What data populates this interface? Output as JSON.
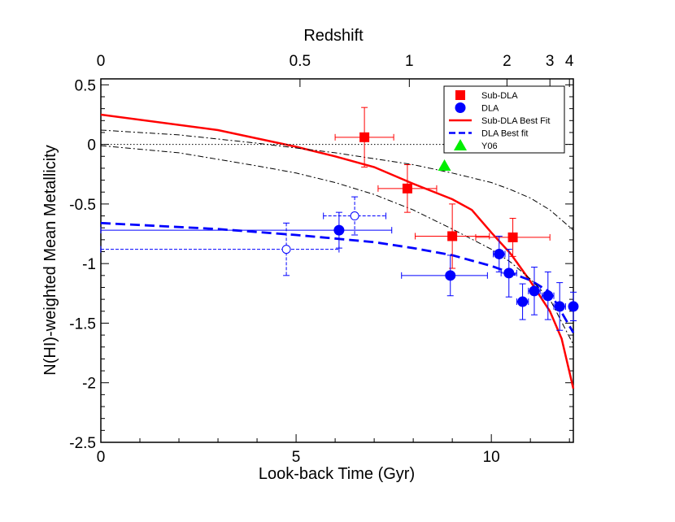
{
  "chart_data": {
    "type": "scatter",
    "xlabel": "Look-back Time (Gyr)",
    "ylabel": "N(HI)-weighted Mean Metallicity",
    "top_xlabel": "Redshift",
    "xlim": [
      0,
      12.1
    ],
    "ylim": [
      -2.5,
      0.55
    ],
    "x_ticks": [
      0,
      5,
      10
    ],
    "x_tick_labels": [
      "0",
      "5",
      "10"
    ],
    "y_ticks": [
      -2.5,
      -2,
      -1.5,
      -1,
      -0.5,
      0,
      0.5
    ],
    "y_tick_labels": [
      "-2.5",
      "-2",
      "-1.5",
      "-1",
      "-0.5",
      "0",
      "0.5"
    ],
    "top_ticks": [
      {
        "t": 0,
        "label": "0"
      },
      {
        "t": 5.1,
        "label": "0.5"
      },
      {
        "t": 7.9,
        "label": "1"
      },
      {
        "t": 10.4,
        "label": "2"
      },
      {
        "t": 11.5,
        "label": "3"
      },
      {
        "t": 12.0,
        "label": "4"
      }
    ],
    "legend_position": "top-right",
    "legend": [
      {
        "label": "Sub-DLA",
        "kind": "square",
        "color": "#ff0000"
      },
      {
        "label": "DLA",
        "kind": "circle",
        "color": "#0000ff"
      },
      {
        "label": "Sub-DLA Best Fit",
        "kind": "line",
        "color": "#ff0000"
      },
      {
        "label": "DLA Best fit",
        "kind": "dashed",
        "color": "#0000ff"
      },
      {
        "label": "Y06",
        "kind": "triangle",
        "color": "#00ee00"
      }
    ],
    "series": [
      {
        "name": "Sub-DLA",
        "marker": "square",
        "color": "#ff0000",
        "points": [
          {
            "x": 6.75,
            "y": 0.06,
            "xerr": 0.75,
            "yerr": 0.25
          },
          {
            "x": 7.85,
            "y": -0.37,
            "xerr": 0.75,
            "yerr": 0.2
          },
          {
            "x": 9.0,
            "y": -0.77,
            "xerr": 0.95,
            "yerr": 0.27
          },
          {
            "x": 10.55,
            "y": -0.78,
            "xerr": 0.95,
            "yerr": 0.16
          }
        ]
      },
      {
        "name": "DLA",
        "marker": "circle",
        "color": "#0000ff",
        "points": [
          {
            "x": 6.1,
            "y": -0.72,
            "xerr": 6.1,
            "yerr": 0.15,
            "xerr_right": 1.35
          },
          {
            "x": 8.95,
            "y": -1.1,
            "xerr": 1.25,
            "yerr": 0.17,
            "xerr_right": 0.95
          },
          {
            "x": 10.2,
            "y": -0.92,
            "xerr": 0.15,
            "yerr": 0.15
          },
          {
            "x": 10.45,
            "y": -1.08,
            "xerr": 0.2,
            "yerr": 0.2
          },
          {
            "x": 10.8,
            "y": -1.32,
            "xerr": 0.15,
            "yerr": 0.15
          },
          {
            "x": 11.1,
            "y": -1.23,
            "xerr": 0.15,
            "yerr": 0.2
          },
          {
            "x": 11.45,
            "y": -1.27,
            "xerr": 0.15,
            "yerr": 0.2
          },
          {
            "x": 11.75,
            "y": -1.36,
            "xerr": 0.15,
            "yerr": 0.2
          },
          {
            "x": 12.1,
            "y": -1.36,
            "xerr": 0.1,
            "yerr": 0.12
          }
        ]
      },
      {
        "name": "DLA (open)",
        "marker": "open-circle",
        "color": "#0000ff",
        "points": [
          {
            "x": 4.75,
            "y": -0.88,
            "xerr": 4.75,
            "yerr": 0.22,
            "xerr_right": 1.35
          },
          {
            "x": 6.5,
            "y": -0.6,
            "xerr": 0.8,
            "yerr": 0.16
          }
        ]
      },
      {
        "name": "Y06",
        "marker": "triangle",
        "color": "#00ee00",
        "points": [
          {
            "x": 8.8,
            "y": -0.18
          }
        ]
      }
    ],
    "curves": [
      {
        "name": "Sub-DLA Best Fit",
        "style": "solid",
        "color": "#ff0000",
        "points": [
          [
            0,
            0.25
          ],
          [
            3,
            0.12
          ],
          [
            5,
            -0.02
          ],
          [
            6,
            -0.1
          ],
          [
            7,
            -0.19
          ],
          [
            8,
            -0.33
          ],
          [
            9,
            -0.46
          ],
          [
            9.5,
            -0.55
          ],
          [
            10,
            -0.74
          ],
          [
            10.5,
            -0.92
          ],
          [
            11,
            -1.15
          ],
          [
            11.5,
            -1.4
          ],
          [
            11.8,
            -1.63
          ],
          [
            12.1,
            -2.05
          ]
        ]
      },
      {
        "name": "DLA Best fit",
        "style": "dashed",
        "color": "#0000ff",
        "points": [
          [
            0,
            -0.66
          ],
          [
            3,
            -0.71
          ],
          [
            5,
            -0.76
          ],
          [
            7,
            -0.82
          ],
          [
            8,
            -0.87
          ],
          [
            9,
            -0.93
          ],
          [
            10,
            -1.02
          ],
          [
            11,
            -1.14
          ],
          [
            11.5,
            -1.24
          ],
          [
            12.1,
            -1.58
          ]
        ]
      },
      {
        "name": "Upper envelope",
        "style": "dashdot",
        "color": "#000000",
        "points": [
          [
            0,
            0.12
          ],
          [
            2,
            0.08
          ],
          [
            4,
            0.01
          ],
          [
            5,
            -0.03
          ],
          [
            6,
            -0.07
          ],
          [
            7,
            -0.12
          ],
          [
            8,
            -0.17
          ],
          [
            9,
            -0.24
          ],
          [
            10,
            -0.32
          ],
          [
            10.5,
            -0.38
          ],
          [
            11,
            -0.45
          ],
          [
            11.5,
            -0.55
          ],
          [
            12.1,
            -0.72
          ]
        ]
      },
      {
        "name": "Lower envelope",
        "style": "dashdot",
        "color": "#000000",
        "points": [
          [
            0,
            -0.01
          ],
          [
            2,
            -0.07
          ],
          [
            4,
            -0.18
          ],
          [
            5,
            -0.24
          ],
          [
            6,
            -0.32
          ],
          [
            7,
            -0.42
          ],
          [
            8,
            -0.55
          ],
          [
            9,
            -0.71
          ],
          [
            10,
            -0.88
          ],
          [
            10.5,
            -0.99
          ],
          [
            11,
            -1.13
          ],
          [
            11.5,
            -1.3
          ],
          [
            12.1,
            -1.68
          ]
        ]
      },
      {
        "name": "Solar reference",
        "style": "dotted",
        "color": "#000000",
        "points": [
          [
            0,
            0
          ],
          [
            12.1,
            0
          ]
        ]
      }
    ]
  }
}
